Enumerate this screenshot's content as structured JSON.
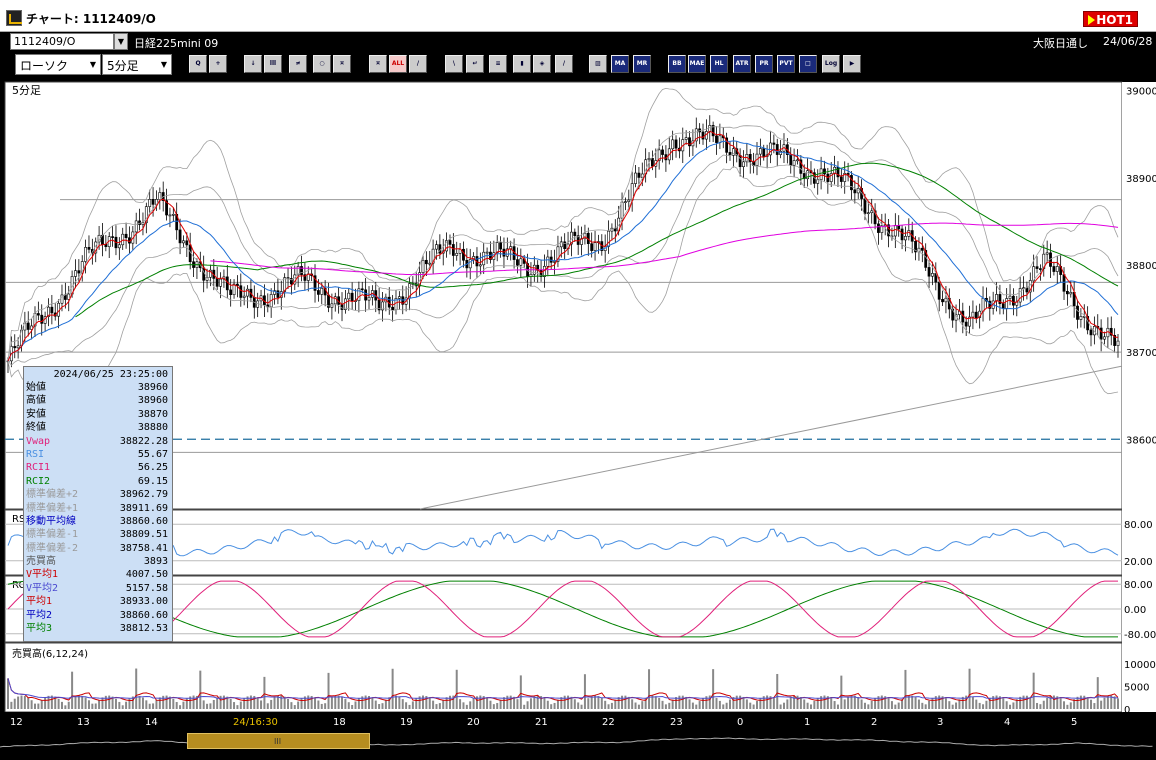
{
  "window": {
    "title": "チャート: 1112409/O",
    "hot_label": "HOT1"
  },
  "symbol": {
    "code": "1112409/O",
    "name": "日経225mini 09",
    "market": "大阪日通し",
    "date": "24/06/28"
  },
  "controls": {
    "chart_type": "ローソク",
    "timeframe": "5分足"
  },
  "toolbar": [
    {
      "icon": "zoom-icon",
      "label": "Q"
    },
    {
      "icon": "cursor-icon",
      "label": "+"
    },
    {
      "icon": "arrow-icon",
      "label": "↓"
    },
    {
      "icon": "bar-icon",
      "label": "lll"
    },
    {
      "icon": "candle-icon",
      "label": "≠"
    },
    {
      "icon": "disabled-icon",
      "label": "○"
    },
    {
      "icon": "chart-a-icon",
      "label": "¤"
    },
    {
      "icon": "chart-b-icon",
      "label": "¤"
    },
    {
      "icon": "all-icon",
      "label": "ALL"
    },
    {
      "icon": "pen-icon",
      "label": "/"
    },
    {
      "icon": "line-icon",
      "label": "\\"
    },
    {
      "icon": "return-icon",
      "label": "↵"
    },
    {
      "icon": "note-icon",
      "label": "≡"
    },
    {
      "icon": "trash-icon",
      "label": "▮"
    },
    {
      "icon": "settings-icon",
      "label": "◈"
    },
    {
      "icon": "brush-icon",
      "label": "/"
    },
    {
      "icon": "color-icon",
      "label": "▨"
    },
    {
      "icon": "ma-icon",
      "label": "MA"
    },
    {
      "icon": "mr-icon",
      "label": "MR"
    },
    {
      "icon": "bb-icon",
      "label": "BB"
    },
    {
      "icon": "mae-icon",
      "label": "MAE"
    },
    {
      "icon": "hl-icon",
      "label": "HL"
    },
    {
      "icon": "atr-icon",
      "label": "ATR"
    },
    {
      "icon": "pr-icon",
      "label": "PR"
    },
    {
      "icon": "pvt-icon",
      "label": "PVT"
    },
    {
      "icon": "window-icon",
      "label": "□"
    },
    {
      "icon": "log-icon",
      "label": "Log"
    },
    {
      "icon": "export-icon",
      "label": "▶"
    }
  ],
  "panels": {
    "price_label": "5分足",
    "rsi_label": "RS",
    "rci_label": "RC",
    "volume_label": "売買高(6,12,24)"
  },
  "price_axis": [
    "39000",
    "38900",
    "38800",
    "38700",
    "38600"
  ],
  "rsi_axis": [
    "80.00",
    "20.00"
  ],
  "rci_axis": [
    "80.00",
    "0.00",
    "-80.00"
  ],
  "volume_axis": [
    "10000",
    "5000",
    "0"
  ],
  "time_axis": [
    "12",
    "13",
    "14",
    "24/16:30",
    "18",
    "19",
    "20",
    "21",
    "22",
    "23",
    "0",
    "1",
    "2",
    "3",
    "4",
    "5"
  ],
  "info": {
    "datetime": "2024/06/25 23:25:00",
    "rows": [
      {
        "k": "始値",
        "v": "38960",
        "c": "#000"
      },
      {
        "k": "高値",
        "v": "38960",
        "c": "#000"
      },
      {
        "k": "安値",
        "v": "38870",
        "c": "#000"
      },
      {
        "k": "終値",
        "v": "38880",
        "c": "#000"
      },
      {
        "k": "Vwap",
        "v": "38822.28",
        "c": "#e0207a"
      },
      {
        "k": "RSI",
        "v": "55.67",
        "c": "#4a90e2"
      },
      {
        "k": "RCI1",
        "v": "56.25",
        "c": "#e0207a"
      },
      {
        "k": "RCI2",
        "v": "69.15",
        "c": "#008000"
      },
      {
        "k": "標準偏差+2",
        "v": "38962.79",
        "c": "#9a9a9a"
      },
      {
        "k": "標準偏差+1",
        "v": "38911.69",
        "c": "#9a9a9a"
      },
      {
        "k": "移動平均線",
        "v": "38860.60",
        "c": "#0000c0"
      },
      {
        "k": "標準偏差-1",
        "v": "38809.51",
        "c": "#9a9a9a"
      },
      {
        "k": "標準偏差-2",
        "v": "38758.41",
        "c": "#9a9a9a"
      },
      {
        "k": "売買高",
        "v": "3893",
        "c": "#555"
      },
      {
        "k": "V平均1",
        "v": "4007.50",
        "c": "#c00"
      },
      {
        "k": "V平均2",
        "v": "5157.58",
        "c": "#4a4ad0"
      },
      {
        "k": "平均1",
        "v": "38933.00",
        "c": "#c00"
      },
      {
        "k": "平均2",
        "v": "38860.60",
        "c": "#0000c0"
      },
      {
        "k": "平均3",
        "v": "38812.53",
        "c": "#008000"
      }
    ]
  },
  "colors": {
    "up": "#ffffff",
    "down": "#000000",
    "ma1": "#e00000",
    "ma2": "#1f6fd6",
    "ma3": "#008000",
    "vwap": "#e000e0",
    "band": "#a0a0a0",
    "rsi": "#4a90e2",
    "rci1": "#e0207a",
    "rci2": "#008000"
  },
  "chart_data": {
    "type": "candlestick",
    "price_ylim": [
      38520,
      39010
    ],
    "series_close_approx": [
      {
        "time": "12",
        "close": 38690
      },
      {
        "time": "13",
        "close": 38800
      },
      {
        "time": "14",
        "close": 38870
      },
      {
        "time": "24/16:30",
        "close": 38760
      },
      {
        "time": "18",
        "close": 38780
      },
      {
        "time": "19",
        "close": 38750
      },
      {
        "time": "20",
        "close": 38820
      },
      {
        "time": "21",
        "close": 38800
      },
      {
        "time": "22",
        "close": 38830
      },
      {
        "time": "23",
        "close": 38950
      },
      {
        "time": "0",
        "close": 38930
      },
      {
        "time": "1",
        "close": 38910
      },
      {
        "time": "2",
        "close": 38840
      },
      {
        "time": "3",
        "close": 38730
      },
      {
        "time": "4",
        "close": 38800
      },
      {
        "time": "5",
        "close": 38700
      }
    ],
    "horizontal_lines": [
      38875,
      38780,
      38700,
      38600,
      38585
    ]
  }
}
